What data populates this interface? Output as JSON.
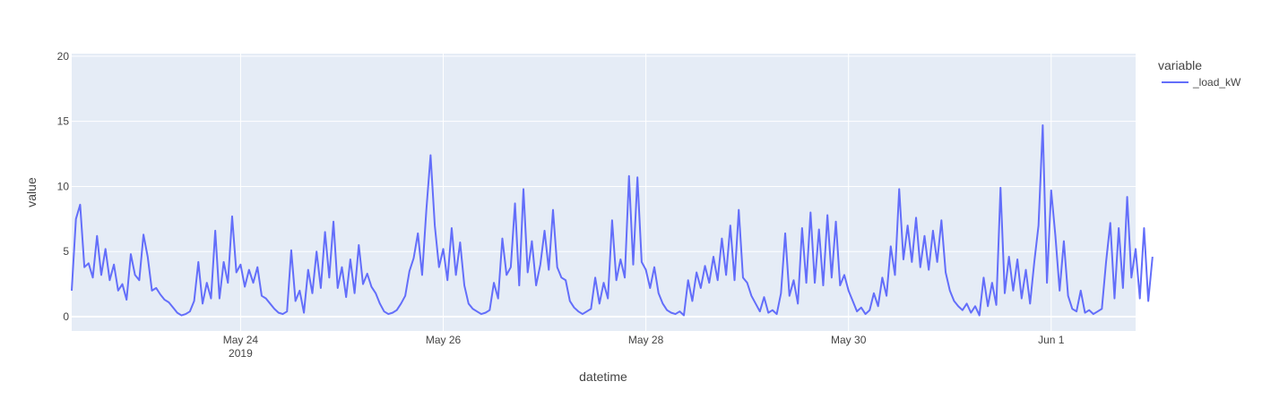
{
  "chart_data": {
    "type": "line",
    "title": "",
    "xlabel": "datetime",
    "ylabel": "value",
    "x_range": [
      "2019-05-22T08:00",
      "2019-06-01T20:00"
    ],
    "ylim": [
      -1.1,
      20.2
    ],
    "y_ticks": [
      0,
      5,
      10,
      15,
      20
    ],
    "x_ticks": [
      {
        "date": "2019-05-24",
        "label": "May 24",
        "sublabel": "2019"
      },
      {
        "date": "2019-05-26",
        "label": "May 26",
        "sublabel": ""
      },
      {
        "date": "2019-05-28",
        "label": "May 28",
        "sublabel": ""
      },
      {
        "date": "2019-05-30",
        "label": "May 30",
        "sublabel": ""
      },
      {
        "date": "2019-06-01",
        "label": "Jun 1",
        "sublabel": ""
      }
    ],
    "grid": true,
    "legend": {
      "title": "variable",
      "placement": "right"
    },
    "series": [
      {
        "name": "_load_kW",
        "color": "#636efa",
        "points": [
          [
            "2019-05-22T08:00",
            2.0
          ],
          [
            "2019-05-22T09:00",
            7.5
          ],
          [
            "2019-05-22T10:00",
            8.6
          ],
          [
            "2019-05-22T11:00",
            3.8
          ],
          [
            "2019-05-22T12:00",
            4.1
          ],
          [
            "2019-05-22T13:00",
            3.0
          ],
          [
            "2019-05-22T14:00",
            6.2
          ],
          [
            "2019-05-22T15:00",
            3.2
          ],
          [
            "2019-05-22T16:00",
            5.2
          ],
          [
            "2019-05-22T17:00",
            2.8
          ],
          [
            "2019-05-22T18:00",
            4.0
          ],
          [
            "2019-05-22T19:00",
            2.0
          ],
          [
            "2019-05-22T20:00",
            2.5
          ],
          [
            "2019-05-22T21:00",
            1.3
          ],
          [
            "2019-05-22T22:00",
            4.8
          ],
          [
            "2019-05-22T23:00",
            3.2
          ],
          [
            "2019-05-23T00:00",
            2.8
          ],
          [
            "2019-05-23T01:00",
            6.3
          ],
          [
            "2019-05-23T02:00",
            4.6
          ],
          [
            "2019-05-23T03:00",
            2.0
          ],
          [
            "2019-05-23T04:00",
            2.2
          ],
          [
            "2019-05-23T05:00",
            1.7
          ],
          [
            "2019-05-23T06:00",
            1.3
          ],
          [
            "2019-05-23T07:00",
            1.1
          ],
          [
            "2019-05-23T08:00",
            0.7
          ],
          [
            "2019-05-23T09:00",
            0.3
          ],
          [
            "2019-05-23T10:00",
            0.1
          ],
          [
            "2019-05-23T11:00",
            0.2
          ],
          [
            "2019-05-23T12:00",
            0.4
          ],
          [
            "2019-05-23T13:00",
            1.2
          ],
          [
            "2019-05-23T14:00",
            4.2
          ],
          [
            "2019-05-23T15:00",
            1.0
          ],
          [
            "2019-05-23T16:00",
            2.6
          ],
          [
            "2019-05-23T17:00",
            1.4
          ],
          [
            "2019-05-23T18:00",
            6.6
          ],
          [
            "2019-05-23T19:00",
            1.4
          ],
          [
            "2019-05-23T20:00",
            4.2
          ],
          [
            "2019-05-23T21:00",
            2.6
          ],
          [
            "2019-05-23T22:00",
            7.7
          ],
          [
            "2019-05-23T23:00",
            3.4
          ],
          [
            "2019-05-24T00:00",
            4.0
          ],
          [
            "2019-05-24T01:00",
            2.3
          ],
          [
            "2019-05-24T02:00",
            3.6
          ],
          [
            "2019-05-24T03:00",
            2.6
          ],
          [
            "2019-05-24T04:00",
            3.8
          ],
          [
            "2019-05-24T05:00",
            1.6
          ],
          [
            "2019-05-24T06:00",
            1.4
          ],
          [
            "2019-05-24T07:00",
            1.0
          ],
          [
            "2019-05-24T08:00",
            0.6
          ],
          [
            "2019-05-24T09:00",
            0.3
          ],
          [
            "2019-05-24T10:00",
            0.2
          ],
          [
            "2019-05-24T11:00",
            0.4
          ],
          [
            "2019-05-24T12:00",
            5.1
          ],
          [
            "2019-05-24T13:00",
            1.2
          ],
          [
            "2019-05-24T14:00",
            2.0
          ],
          [
            "2019-05-24T15:00",
            0.3
          ],
          [
            "2019-05-24T16:00",
            3.6
          ],
          [
            "2019-05-24T17:00",
            1.8
          ],
          [
            "2019-05-24T18:00",
            5.0
          ],
          [
            "2019-05-24T19:00",
            2.2
          ],
          [
            "2019-05-24T20:00",
            6.5
          ],
          [
            "2019-05-24T21:00",
            3.0
          ],
          [
            "2019-05-24T22:00",
            7.3
          ],
          [
            "2019-05-24T23:00",
            2.2
          ],
          [
            "2019-05-25T00:00",
            3.8
          ],
          [
            "2019-05-25T01:00",
            1.5
          ],
          [
            "2019-05-25T02:00",
            4.4
          ],
          [
            "2019-05-25T03:00",
            1.8
          ],
          [
            "2019-05-25T04:00",
            5.5
          ],
          [
            "2019-05-25T05:00",
            2.5
          ],
          [
            "2019-05-25T06:00",
            3.3
          ],
          [
            "2019-05-25T07:00",
            2.3
          ],
          [
            "2019-05-25T08:00",
            1.8
          ],
          [
            "2019-05-25T09:00",
            1.0
          ],
          [
            "2019-05-25T10:00",
            0.4
          ],
          [
            "2019-05-25T11:00",
            0.2
          ],
          [
            "2019-05-25T12:00",
            0.3
          ],
          [
            "2019-05-25T13:00",
            0.5
          ],
          [
            "2019-05-25T14:00",
            1.0
          ],
          [
            "2019-05-25T15:00",
            1.6
          ],
          [
            "2019-05-25T16:00",
            3.5
          ],
          [
            "2019-05-25T17:00",
            4.5
          ],
          [
            "2019-05-25T18:00",
            6.4
          ],
          [
            "2019-05-25T19:00",
            3.2
          ],
          [
            "2019-05-25T20:00",
            8.2
          ],
          [
            "2019-05-25T21:00",
            12.4
          ],
          [
            "2019-05-25T22:00",
            7.0
          ],
          [
            "2019-05-25T23:00",
            3.8
          ],
          [
            "2019-05-26T00:00",
            5.2
          ],
          [
            "2019-05-26T01:00",
            2.8
          ],
          [
            "2019-05-26T02:00",
            6.8
          ],
          [
            "2019-05-26T03:00",
            3.2
          ],
          [
            "2019-05-26T04:00",
            5.7
          ],
          [
            "2019-05-26T05:00",
            2.4
          ],
          [
            "2019-05-26T06:00",
            1.0
          ],
          [
            "2019-05-26T07:00",
            0.6
          ],
          [
            "2019-05-26T08:00",
            0.4
          ],
          [
            "2019-05-26T09:00",
            0.2
          ],
          [
            "2019-05-26T10:00",
            0.3
          ],
          [
            "2019-05-26T11:00",
            0.5
          ],
          [
            "2019-05-26T12:00",
            2.6
          ],
          [
            "2019-05-26T13:00",
            1.4
          ],
          [
            "2019-05-26T14:00",
            6.0
          ],
          [
            "2019-05-26T15:00",
            3.2
          ],
          [
            "2019-05-26T16:00",
            3.8
          ],
          [
            "2019-05-26T17:00",
            8.7
          ],
          [
            "2019-05-26T18:00",
            2.4
          ],
          [
            "2019-05-26T19:00",
            9.8
          ],
          [
            "2019-05-26T20:00",
            3.4
          ],
          [
            "2019-05-26T21:00",
            5.8
          ],
          [
            "2019-05-26T22:00",
            2.4
          ],
          [
            "2019-05-26T23:00",
            4.0
          ],
          [
            "2019-05-27T00:00",
            6.6
          ],
          [
            "2019-05-27T01:00",
            3.6
          ],
          [
            "2019-05-27T02:00",
            8.2
          ],
          [
            "2019-05-27T03:00",
            3.8
          ],
          [
            "2019-05-27T04:00",
            3.0
          ],
          [
            "2019-05-27T05:00",
            2.8
          ],
          [
            "2019-05-27T06:00",
            1.2
          ],
          [
            "2019-05-27T07:00",
            0.7
          ],
          [
            "2019-05-27T08:00",
            0.4
          ],
          [
            "2019-05-27T09:00",
            0.2
          ],
          [
            "2019-05-27T10:00",
            0.4
          ],
          [
            "2019-05-27T11:00",
            0.6
          ],
          [
            "2019-05-27T12:00",
            3.0
          ],
          [
            "2019-05-27T13:00",
            1.0
          ],
          [
            "2019-05-27T14:00",
            2.6
          ],
          [
            "2019-05-27T15:00",
            1.4
          ],
          [
            "2019-05-27T16:00",
            7.4
          ],
          [
            "2019-05-27T17:00",
            2.8
          ],
          [
            "2019-05-27T18:00",
            4.4
          ],
          [
            "2019-05-27T19:00",
            3.0
          ],
          [
            "2019-05-27T20:00",
            10.8
          ],
          [
            "2019-05-27T21:00",
            4.0
          ],
          [
            "2019-05-27T22:00",
            10.7
          ],
          [
            "2019-05-27T23:00",
            4.2
          ],
          [
            "2019-05-28T00:00",
            3.6
          ],
          [
            "2019-05-28T01:00",
            2.2
          ],
          [
            "2019-05-28T02:00",
            3.8
          ],
          [
            "2019-05-28T03:00",
            1.8
          ],
          [
            "2019-05-28T04:00",
            1.0
          ],
          [
            "2019-05-28T05:00",
            0.5
          ],
          [
            "2019-05-28T06:00",
            0.3
          ],
          [
            "2019-05-28T07:00",
            0.2
          ],
          [
            "2019-05-28T08:00",
            0.4
          ],
          [
            "2019-05-28T09:00",
            0.1
          ],
          [
            "2019-05-28T10:00",
            2.8
          ],
          [
            "2019-05-28T11:00",
            1.2
          ],
          [
            "2019-05-28T12:00",
            3.4
          ],
          [
            "2019-05-28T13:00",
            2.2
          ],
          [
            "2019-05-28T14:00",
            3.9
          ],
          [
            "2019-05-28T15:00",
            2.6
          ],
          [
            "2019-05-28T16:00",
            4.6
          ],
          [
            "2019-05-28T17:00",
            2.8
          ],
          [
            "2019-05-28T18:00",
            6.0
          ],
          [
            "2019-05-28T19:00",
            3.2
          ],
          [
            "2019-05-28T20:00",
            7.0
          ],
          [
            "2019-05-28T21:00",
            2.8
          ],
          [
            "2019-05-28T22:00",
            8.2
          ],
          [
            "2019-05-28T23:00",
            3.0
          ],
          [
            "2019-05-29T00:00",
            2.6
          ],
          [
            "2019-05-29T01:00",
            1.6
          ],
          [
            "2019-05-29T02:00",
            1.0
          ],
          [
            "2019-05-29T03:00",
            0.4
          ],
          [
            "2019-05-29T04:00",
            1.5
          ],
          [
            "2019-05-29T05:00",
            0.3
          ],
          [
            "2019-05-29T06:00",
            0.5
          ],
          [
            "2019-05-29T07:00",
            0.2
          ],
          [
            "2019-05-29T08:00",
            1.8
          ],
          [
            "2019-05-29T09:00",
            6.4
          ],
          [
            "2019-05-29T10:00",
            1.6
          ],
          [
            "2019-05-29T11:00",
            2.8
          ],
          [
            "2019-05-29T12:00",
            1.0
          ],
          [
            "2019-05-29T13:00",
            6.8
          ],
          [
            "2019-05-29T14:00",
            2.6
          ],
          [
            "2019-05-29T15:00",
            8.0
          ],
          [
            "2019-05-29T16:00",
            2.6
          ],
          [
            "2019-05-29T17:00",
            6.7
          ],
          [
            "2019-05-29T18:00",
            2.4
          ],
          [
            "2019-05-29T19:00",
            7.8
          ],
          [
            "2019-05-29T20:00",
            3.0
          ],
          [
            "2019-05-29T21:00",
            7.3
          ],
          [
            "2019-05-29T22:00",
            2.4
          ],
          [
            "2019-05-29T23:00",
            3.2
          ],
          [
            "2019-05-30T00:00",
            2.0
          ],
          [
            "2019-05-30T01:00",
            1.2
          ],
          [
            "2019-05-30T02:00",
            0.4
          ],
          [
            "2019-05-30T03:00",
            0.7
          ],
          [
            "2019-05-30T04:00",
            0.2
          ],
          [
            "2019-05-30T05:00",
            0.5
          ],
          [
            "2019-05-30T06:00",
            1.8
          ],
          [
            "2019-05-30T07:00",
            0.8
          ],
          [
            "2019-05-30T08:00",
            3.0
          ],
          [
            "2019-05-30T09:00",
            1.6
          ],
          [
            "2019-05-30T10:00",
            5.4
          ],
          [
            "2019-05-30T11:00",
            3.2
          ],
          [
            "2019-05-30T12:00",
            9.8
          ],
          [
            "2019-05-30T13:00",
            4.4
          ],
          [
            "2019-05-30T14:00",
            7.0
          ],
          [
            "2019-05-30T15:00",
            4.2
          ],
          [
            "2019-05-30T16:00",
            7.6
          ],
          [
            "2019-05-30T17:00",
            3.8
          ],
          [
            "2019-05-30T18:00",
            6.2
          ],
          [
            "2019-05-30T19:00",
            3.6
          ],
          [
            "2019-05-30T20:00",
            6.6
          ],
          [
            "2019-05-30T21:00",
            4.2
          ],
          [
            "2019-05-30T22:00",
            7.4
          ],
          [
            "2019-05-30T23:00",
            3.4
          ],
          [
            "2019-05-31T00:00",
            2.0
          ],
          [
            "2019-05-31T01:00",
            1.2
          ],
          [
            "2019-05-31T02:00",
            0.8
          ],
          [
            "2019-05-31T03:00",
            0.5
          ],
          [
            "2019-05-31T04:00",
            1.0
          ],
          [
            "2019-05-31T05:00",
            0.3
          ],
          [
            "2019-05-31T06:00",
            0.8
          ],
          [
            "2019-05-31T07:00",
            0.1
          ],
          [
            "2019-05-31T08:00",
            3.0
          ],
          [
            "2019-05-31T09:00",
            0.8
          ],
          [
            "2019-05-31T10:00",
            2.6
          ],
          [
            "2019-05-31T11:00",
            0.9
          ],
          [
            "2019-05-31T12:00",
            9.9
          ],
          [
            "2019-05-31T13:00",
            1.8
          ],
          [
            "2019-05-31T14:00",
            4.6
          ],
          [
            "2019-05-31T15:00",
            2.0
          ],
          [
            "2019-05-31T16:00",
            4.4
          ],
          [
            "2019-05-31T17:00",
            1.4
          ],
          [
            "2019-05-31T18:00",
            3.6
          ],
          [
            "2019-05-31T19:00",
            1.0
          ],
          [
            "2019-05-31T20:00",
            4.2
          ],
          [
            "2019-05-31T21:00",
            7.0
          ],
          [
            "2019-05-31T22:00",
            14.7
          ],
          [
            "2019-05-31T23:00",
            2.6
          ],
          [
            "2019-06-01T00:00",
            9.7
          ],
          [
            "2019-06-01T01:00",
            6.2
          ],
          [
            "2019-06-01T02:00",
            2.0
          ],
          [
            "2019-06-01T03:00",
            5.8
          ],
          [
            "2019-06-01T04:00",
            1.6
          ],
          [
            "2019-06-01T05:00",
            0.6
          ],
          [
            "2019-06-01T06:00",
            0.4
          ],
          [
            "2019-06-01T07:00",
            2.0
          ],
          [
            "2019-06-01T08:00",
            0.3
          ],
          [
            "2019-06-01T09:00",
            0.5
          ],
          [
            "2019-06-01T10:00",
            0.2
          ],
          [
            "2019-06-01T11:00",
            0.4
          ],
          [
            "2019-06-01T12:00",
            0.6
          ],
          [
            "2019-06-01T13:00",
            4.2
          ],
          [
            "2019-06-01T14:00",
            7.2
          ],
          [
            "2019-06-01T15:00",
            1.4
          ],
          [
            "2019-06-01T16:00",
            6.8
          ],
          [
            "2019-06-01T17:00",
            2.2
          ],
          [
            "2019-06-01T18:00",
            9.2
          ],
          [
            "2019-06-01T19:00",
            3.0
          ],
          [
            "2019-06-01T20:00",
            5.2
          ],
          [
            "2019-06-01T21:00",
            1.4
          ],
          [
            "2019-06-01T22:00",
            6.8
          ],
          [
            "2019-06-01T23:00",
            1.2
          ],
          [
            "2019-06-02T00:00",
            4.6
          ]
        ]
      }
    ]
  }
}
